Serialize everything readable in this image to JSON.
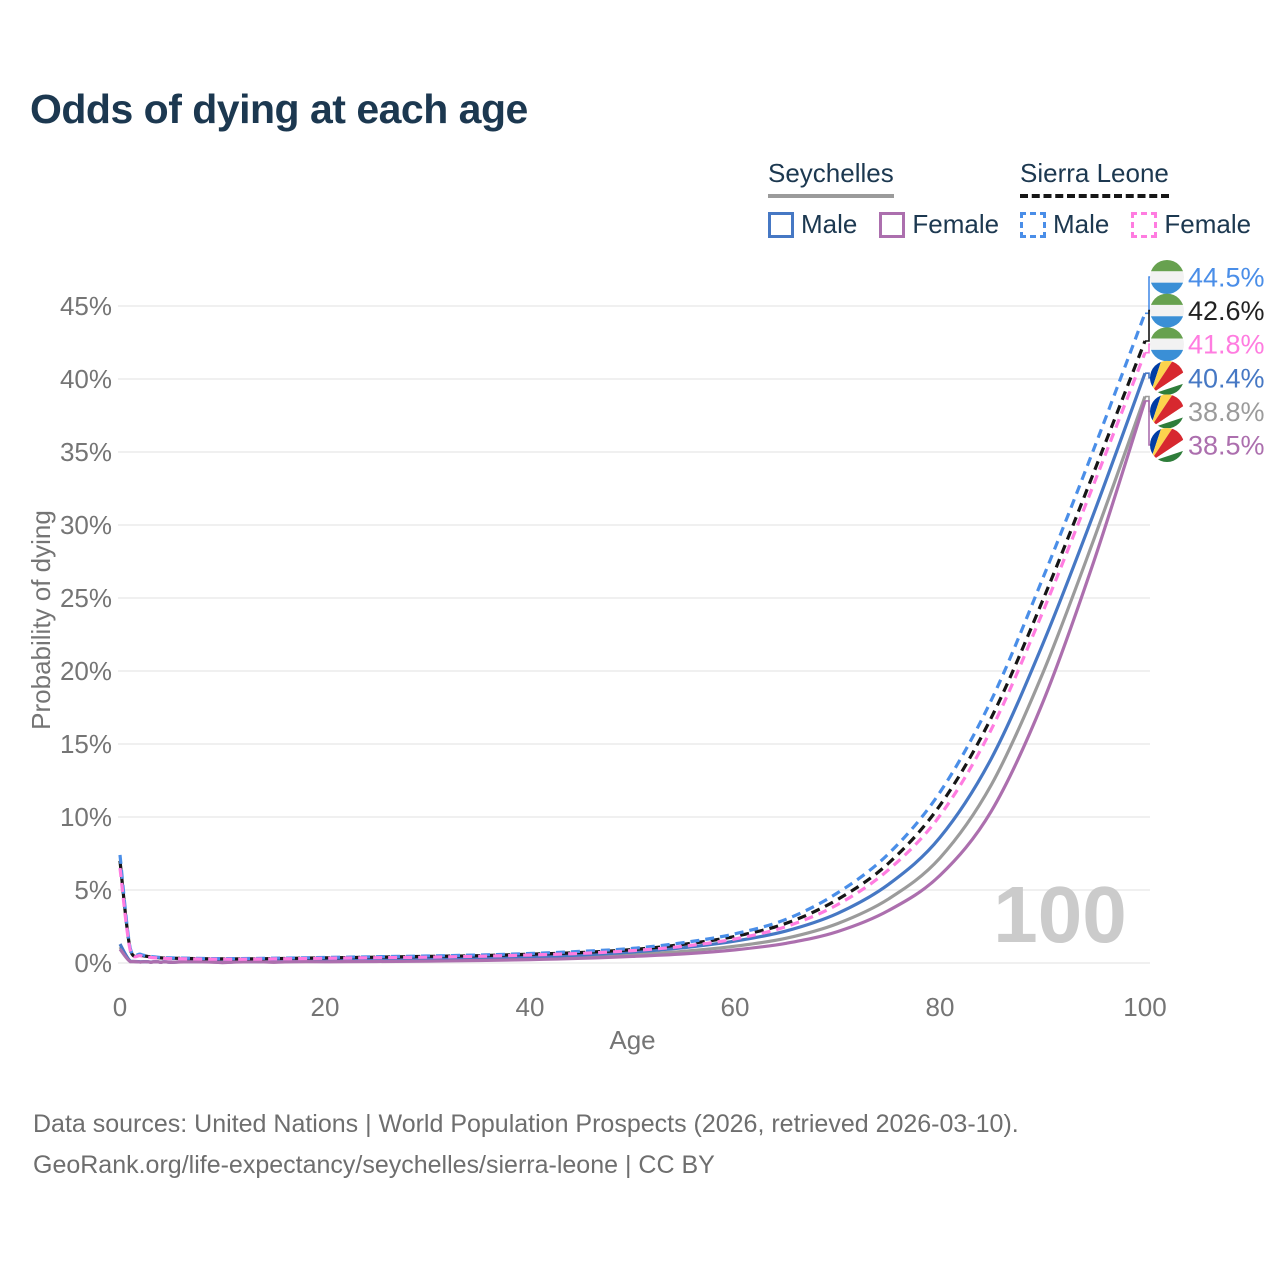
{
  "title": "Odds of dying at each age",
  "legend": {
    "groups": [
      {
        "name": "Seychelles",
        "line_style": "solid",
        "line_color": "#9b9b9b",
        "items": [
          {
            "label": "Male",
            "color": "#4678c4",
            "dashed": false
          },
          {
            "label": "Female",
            "color": "#ac6fae",
            "dashed": false
          }
        ]
      },
      {
        "name": "Sierra Leone",
        "line_style": "dashed",
        "line_color": "#161616",
        "items": [
          {
            "label": "Male",
            "color": "#4a8ee8",
            "dashed": true
          },
          {
            "label": "Female",
            "color": "#ff7ce0",
            "dashed": true
          }
        ]
      }
    ]
  },
  "chart_data": {
    "type": "line",
    "title": "Odds of dying at each age",
    "xlabel": "Age",
    "ylabel": "Probability of dying",
    "xlim": [
      0,
      100
    ],
    "ylim": [
      0,
      45
    ],
    "xticks": [
      0,
      20,
      40,
      60,
      80,
      100
    ],
    "yticks": [
      0,
      5,
      10,
      15,
      20,
      25,
      30,
      35,
      40,
      45
    ],
    "ytick_suffix": "%",
    "grid": "horizontal-only",
    "legend_position": "top-right",
    "watermark": "100",
    "x": [
      0,
      1,
      2,
      3,
      4,
      5,
      10,
      15,
      20,
      25,
      30,
      35,
      40,
      45,
      50,
      55,
      60,
      65,
      70,
      75,
      80,
      85,
      90,
      95,
      100
    ],
    "series": [
      {
        "name": "Sierra Leone — Male",
        "country": "Sierra Leone",
        "sex": "Male",
        "color": "#4a8ee8",
        "dashed": true,
        "flag": "sierra-leone",
        "end_value": 44.5,
        "end_label": "44.5%",
        "label_color": "#4a8ee8",
        "values": [
          7.4,
          1.0,
          0.6,
          0.45,
          0.38,
          0.35,
          0.3,
          0.33,
          0.38,
          0.43,
          0.48,
          0.55,
          0.65,
          0.8,
          1.0,
          1.4,
          2.0,
          3.0,
          4.8,
          7.5,
          11.7,
          18.0,
          26.3,
          35.2,
          44.5
        ]
      },
      {
        "name": "Sierra Leone — Both sexes",
        "country": "Sierra Leone",
        "sex": "Both",
        "color": "#161616",
        "dashed": true,
        "flag": "sierra-leone",
        "end_value": 42.6,
        "end_label": "42.6%",
        "label_color": "#222222",
        "values": [
          7.0,
          0.92,
          0.55,
          0.42,
          0.35,
          0.33,
          0.28,
          0.3,
          0.35,
          0.4,
          0.45,
          0.5,
          0.6,
          0.72,
          0.92,
          1.28,
          1.82,
          2.72,
          4.35,
          6.85,
          10.8,
          16.8,
          24.8,
          33.6,
          42.6
        ]
      },
      {
        "name": "Sierra Leone — Female",
        "country": "Sierra Leone",
        "sex": "Female",
        "color": "#ff7ce0",
        "dashed": true,
        "flag": "sierra-leone",
        "end_value": 41.8,
        "end_label": "41.8%",
        "label_color": "#ff7ce0",
        "values": [
          6.5,
          0.85,
          0.5,
          0.38,
          0.33,
          0.3,
          0.26,
          0.28,
          0.32,
          0.36,
          0.4,
          0.46,
          0.55,
          0.66,
          0.85,
          1.15,
          1.65,
          2.5,
          4.0,
          6.4,
          10.1,
          16.0,
          24.0,
          32.8,
          41.8
        ]
      },
      {
        "name": "Seychelles — Male",
        "country": "Seychelles",
        "sex": "Male",
        "color": "#4678c4",
        "dashed": false,
        "flag": "seychelles",
        "end_value": 40.4,
        "end_label": "40.4%",
        "label_color": "#4678c4",
        "values": [
          1.3,
          0.12,
          0.08,
          0.06,
          0.05,
          0.05,
          0.05,
          0.08,
          0.15,
          0.2,
          0.25,
          0.3,
          0.4,
          0.55,
          0.75,
          1.05,
          1.5,
          2.2,
          3.4,
          5.4,
          8.6,
          14.0,
          21.8,
          30.8,
          40.4
        ]
      },
      {
        "name": "Seychelles — Both sexes",
        "country": "Seychelles",
        "sex": "Both",
        "color": "#9b9b9b",
        "dashed": false,
        "flag": "seychelles",
        "end_value": 38.8,
        "end_label": "38.8%",
        "label_color": "#9b9b9b",
        "values": [
          1.1,
          0.1,
          0.07,
          0.05,
          0.04,
          0.04,
          0.04,
          0.06,
          0.11,
          0.15,
          0.19,
          0.23,
          0.3,
          0.42,
          0.58,
          0.8,
          1.15,
          1.7,
          2.7,
          4.4,
          7.2,
          12.2,
          19.8,
          29.0,
          38.8
        ]
      },
      {
        "name": "Seychelles — Female",
        "country": "Seychelles",
        "sex": "Female",
        "color": "#ac6fae",
        "dashed": false,
        "flag": "seychelles",
        "end_value": 38.5,
        "end_label": "38.5%",
        "label_color": "#ac6fae",
        "values": [
          0.95,
          0.09,
          0.06,
          0.05,
          0.04,
          0.04,
          0.03,
          0.05,
          0.08,
          0.1,
          0.13,
          0.17,
          0.23,
          0.32,
          0.45,
          0.62,
          0.9,
          1.35,
          2.15,
          3.6,
          6.0,
          10.4,
          17.8,
          27.5,
          38.5
        ]
      }
    ]
  },
  "flags": {
    "sierra-leone": {
      "green": "#67a14f",
      "white": "#f2f2f2",
      "blue": "#3a8fd6"
    },
    "seychelles": {
      "blue": "#003da5",
      "yellow": "#fcd34d",
      "red": "#d7282f",
      "white": "#ffffff",
      "green": "#2e7d3a"
    }
  },
  "colors": {
    "title": "#1c3850",
    "axis_text": "#757575",
    "gridline": "#ebebeb",
    "watermark": "#cbcbcb",
    "footer_text": "#6e6e6e"
  },
  "footer": {
    "line1": "Data sources: United Nations | World Population Prospects (2026, retrieved 2026-03-10).",
    "line2": "GeoRank.org/life-expectancy/seychelles/sierra-leone | CC BY"
  }
}
